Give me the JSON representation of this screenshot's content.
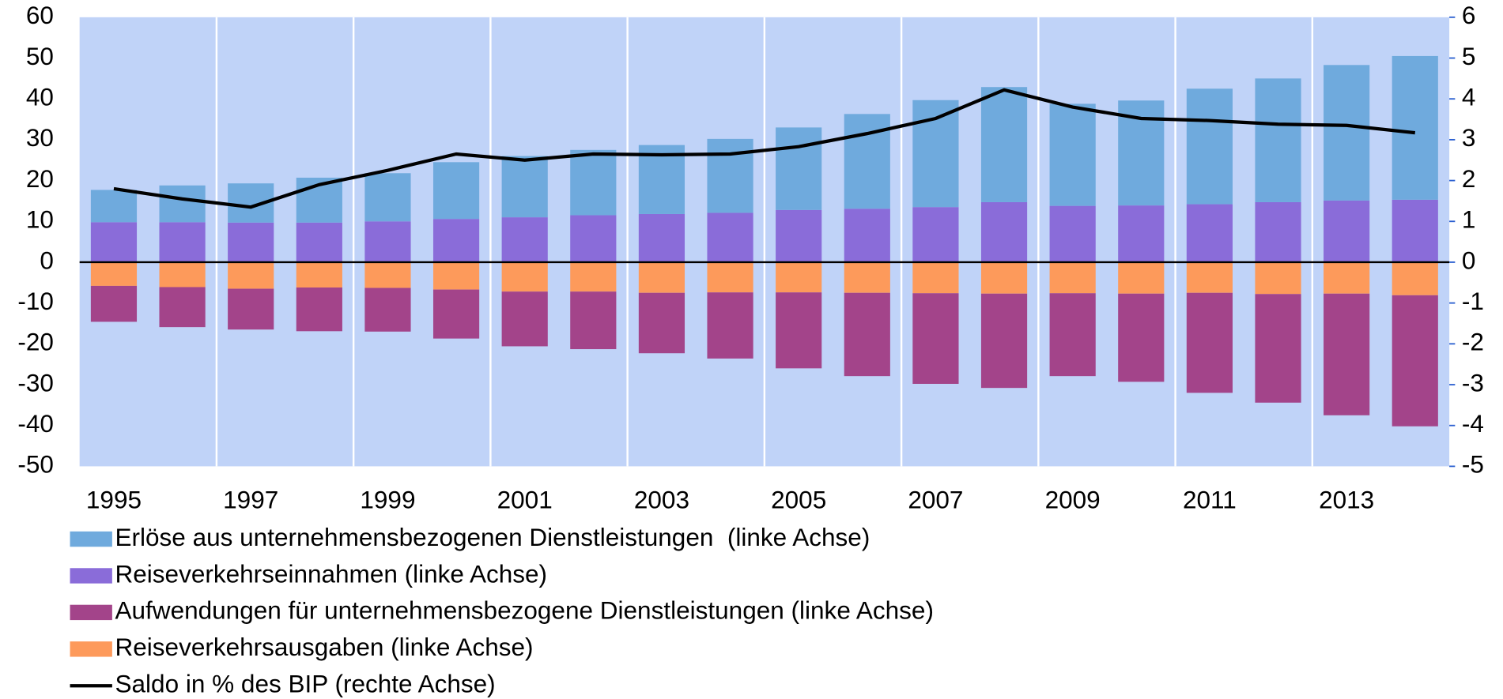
{
  "chart_data": {
    "type": "bar",
    "stacked": true,
    "categories": [
      "1995",
      null,
      "1997",
      null,
      "1999",
      null,
      "2001",
      null,
      "2003",
      null,
      "2005",
      null,
      "2007",
      null,
      "2009",
      null,
      "2011",
      null,
      "2013",
      null
    ],
    "series": [
      {
        "name": "Erlöse aus unternehmensbezogenen Dienstleistungen  (linke Achse)",
        "color": "#6faadd",
        "values": [
          7.9,
          9.0,
          9.6,
          11.0,
          11.8,
          13.9,
          15.0,
          16.0,
          16.9,
          18.1,
          20.2,
          23.2,
          26.2,
          28.2,
          25.0,
          25.7,
          28.3,
          30.3,
          33.2,
          35.2
        ]
      },
      {
        "name": "Reiseverkehrseinnahmen (linke Achse)",
        "color": "#8a6cd9",
        "values": [
          9.8,
          9.8,
          9.7,
          9.7,
          10.0,
          10.6,
          11.0,
          11.5,
          11.8,
          12.1,
          12.8,
          13.1,
          13.5,
          14.7,
          13.8,
          13.9,
          14.2,
          14.7,
          15.1,
          15.3
        ]
      },
      {
        "name": "Aufwendungen für unternehmensbezogene Dienstleistungen (linke Achse)",
        "color": "#a3448a",
        "values": [
          -8.8,
          -9.8,
          -10.0,
          -10.7,
          -10.7,
          -12.0,
          -13.4,
          -14.1,
          -14.8,
          -16.2,
          -18.6,
          -20.4,
          -22.2,
          -23.1,
          -20.3,
          -21.6,
          -24.5,
          -26.6,
          -29.8,
          -32.1
        ]
      },
      {
        "name": "Reiseverkehrsausgaben (linke Achse)",
        "color": "#fd9a5b",
        "values": [
          -5.8,
          -6.1,
          -6.5,
          -6.2,
          -6.3,
          -6.7,
          -7.2,
          -7.2,
          -7.5,
          -7.4,
          -7.4,
          -7.5,
          -7.6,
          -7.7,
          -7.6,
          -7.7,
          -7.5,
          -7.8,
          -7.7,
          -8.1
        ]
      },
      {
        "name": "Saldo in % des BIP (rechte Achse)",
        "color": "#000000",
        "type": "line",
        "axis": "y2",
        "values": [
          1.8,
          1.55,
          1.35,
          1.9,
          2.25,
          2.65,
          2.5,
          2.65,
          2.63,
          2.65,
          2.83,
          3.15,
          3.52,
          4.22,
          3.8,
          3.52,
          3.47,
          3.38,
          3.35,
          3.17
        ]
      }
    ],
    "ylim": [
      -50,
      60
    ],
    "yticks": [
      -50,
      -40,
      -30,
      -20,
      -10,
      0,
      10,
      20,
      30,
      40,
      50,
      60
    ],
    "y2lim": [
      -5,
      6
    ],
    "y2ticks": [
      -5,
      -4,
      -3,
      -2,
      -1,
      0,
      1,
      2,
      3,
      4,
      5,
      6
    ],
    "plot_color": "#c0d3f8"
  }
}
